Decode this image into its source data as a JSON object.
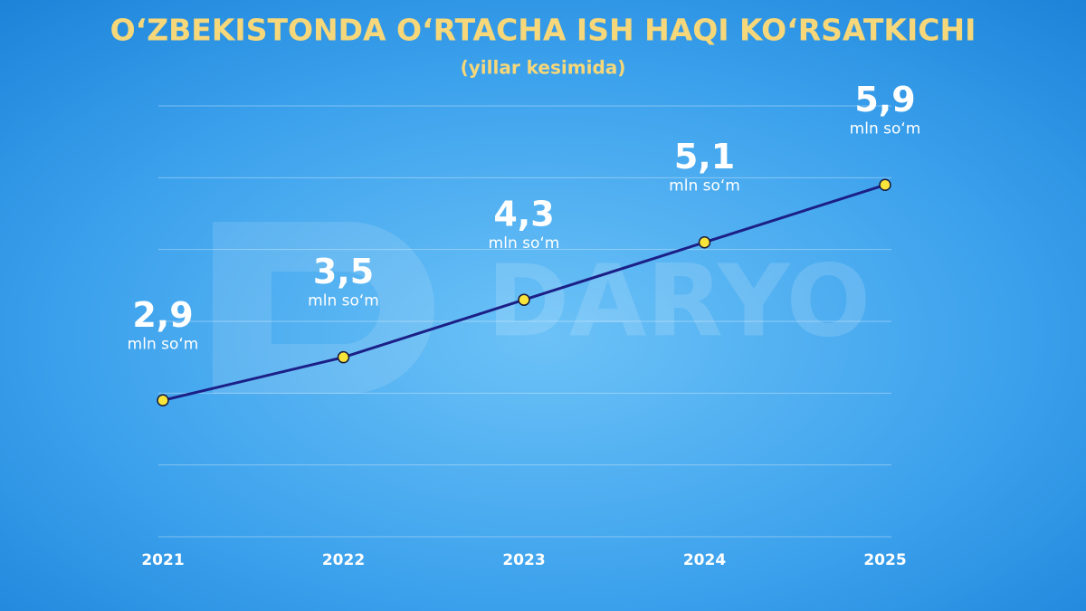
{
  "chart_data": {
    "type": "line",
    "title": "O‘ZBEKISTONDA O‘RTACHA ISH HAQI KO‘RSATKICHI",
    "subtitle": "(yillar kesimida)",
    "watermark": "DARYO",
    "unit": "mln so‘m",
    "categories": [
      "2021",
      "2022",
      "2023",
      "2024",
      "2025"
    ],
    "values": [
      2.9,
      3.5,
      4.3,
      5.1,
      5.9
    ],
    "value_labels": [
      "2,9",
      "3,5",
      "4,3",
      "5,1",
      "5,9"
    ],
    "color": "#1b1f86",
    "marker_color": "#f7e53b",
    "ylim": [
      1,
      7
    ],
    "yticks": [
      1,
      2,
      3,
      4,
      5,
      6,
      7
    ],
    "grid": true
  }
}
